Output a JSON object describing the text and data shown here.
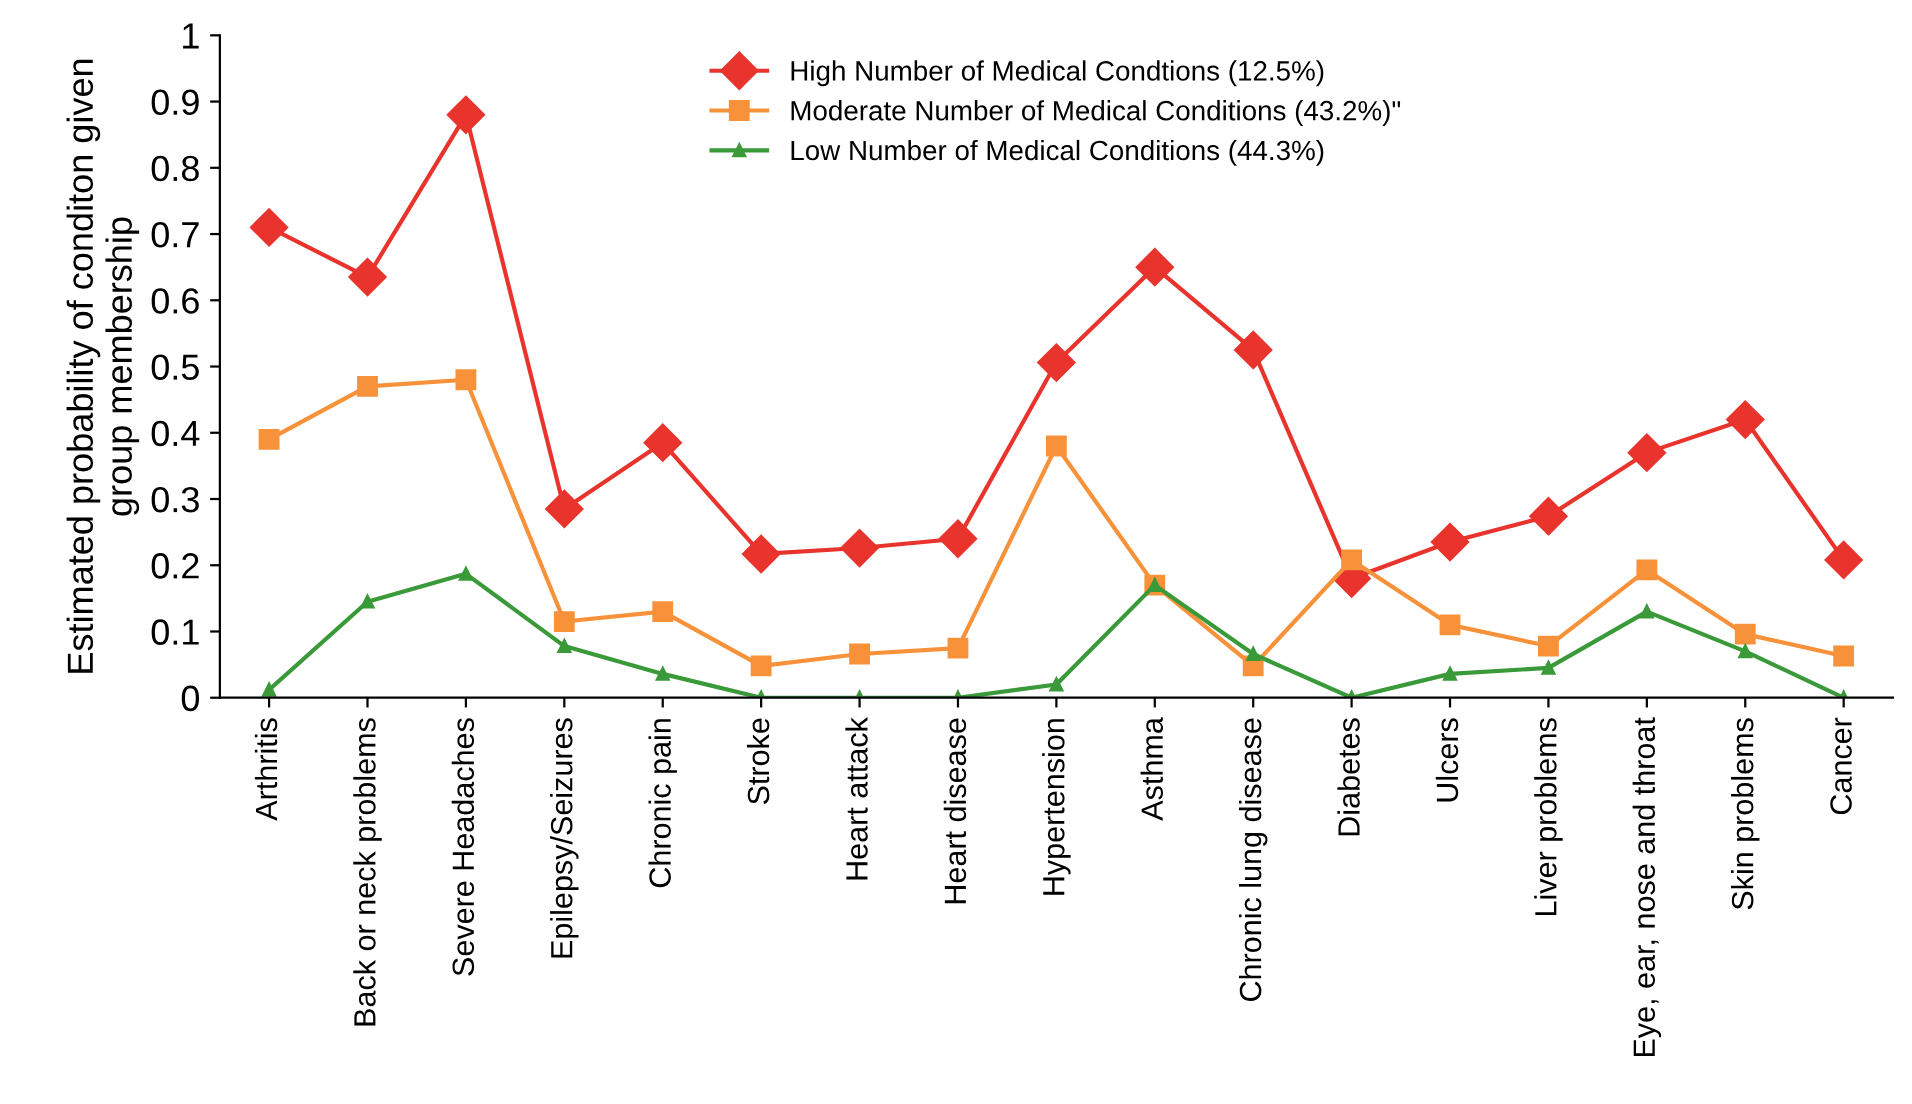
{
  "chart_data": {
    "type": "line",
    "ylabel": "Estimated probability of conditon given\ngroup membership",
    "categories": [
      "Arthritis",
      "Back or neck problems",
      "Severe Headaches",
      "Epilepsy/Seizures",
      "Chronic pain",
      "Stroke",
      "Heart attack",
      "Heart disease",
      "Hypertension",
      "Asthma",
      "Chronic lung disease",
      "Diabetes",
      "Ulcers",
      "Liver problems",
      "Eye, ear, nose and throat",
      "Skin problems",
      "Cancer"
    ],
    "series": [
      {
        "name": "High Number of Medical Condtions (12.5%)",
        "color": "#e8342c",
        "marker": "diamond",
        "values": [
          0.71,
          0.635,
          0.88,
          0.285,
          0.385,
          0.217,
          0.226,
          0.24,
          0.506,
          0.65,
          0.525,
          0.18,
          0.235,
          0.274,
          0.37,
          0.42,
          0.208
        ]
      },
      {
        "name": "Moderate Number of Medical Conditions (43.2%)\"",
        "color": "#f7923a",
        "marker": "square",
        "values": [
          0.39,
          0.47,
          0.48,
          0.115,
          0.13,
          0.048,
          0.066,
          0.075,
          0.38,
          0.17,
          0.048,
          0.208,
          0.11,
          0.078,
          0.193,
          0.096,
          0.063
        ]
      },
      {
        "name": "Low Number of Medical Conditions (44.3%)",
        "color": "#3a9a3a",
        "marker": "triangle",
        "values": [
          0.012,
          0.145,
          0.187,
          0.078,
          0.036,
          0.0,
          0.0,
          0.0,
          0.02,
          0.17,
          0.066,
          0.0,
          0.036,
          0.045,
          0.13,
          0.07,
          0.0
        ]
      }
    ],
    "ylim": [
      0,
      1
    ],
    "yticks": [
      0,
      0.1,
      0.2,
      0.3,
      0.4,
      0.5,
      0.6,
      0.7,
      0.8,
      0.9,
      1
    ],
    "legend": "top",
    "grid": false,
    "line_style": "solid"
  }
}
